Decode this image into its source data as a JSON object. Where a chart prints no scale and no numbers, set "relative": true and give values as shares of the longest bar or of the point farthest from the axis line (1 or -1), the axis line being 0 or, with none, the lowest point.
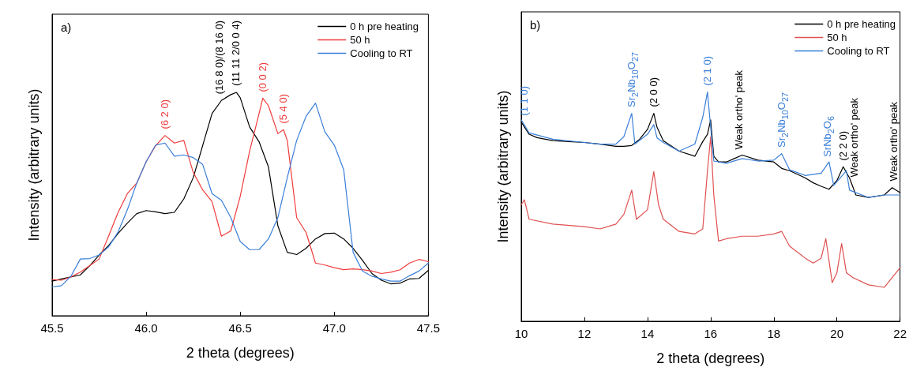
{
  "chart_data": [
    {
      "type": "line",
      "title": "a)",
      "xlabel": "2 theta (degrees)",
      "ylabel": "Intensity (arbitrary units)",
      "relative": true,
      "legend": "top right",
      "grid": false,
      "xlim": [
        45.5,
        47.5
      ],
      "xticks": [
        45.5,
        {
          "value": 46,
          "label": "46.0"
        },
        46.5,
        {
          "value": 47,
          "label": "47.0"
        },
        47.5
      ],
      "series": [
        {
          "name": "0 h pre heating",
          "color": "#000000",
          "x": [
            45.5,
            45.55,
            45.65,
            45.7,
            45.75,
            45.8,
            45.85,
            45.9,
            45.95,
            46.0,
            46.05,
            46.1,
            46.15,
            46.2,
            46.25,
            46.3,
            46.35,
            46.4,
            46.45,
            46.48,
            46.5,
            46.55,
            46.6,
            46.65,
            46.7,
            46.75,
            46.8,
            46.85,
            46.9,
            46.95,
            47.0,
            47.05,
            47.1,
            47.15,
            47.2,
            47.25,
            47.3,
            47.35,
            47.4,
            47.45,
            47.5
          ],
          "values": [
            0.155,
            0.165,
            0.183,
            0.224,
            0.272,
            0.314,
            0.368,
            0.415,
            0.457,
            0.471,
            0.465,
            0.457,
            0.463,
            0.523,
            0.618,
            0.761,
            0.905,
            0.964,
            0.99,
            1,
            0.976,
            0.845,
            0.779,
            0.666,
            0.403,
            0.284,
            0.274,
            0.302,
            0.344,
            0.368,
            0.37,
            0.344,
            0.302,
            0.248,
            0.189,
            0.159,
            0.143,
            0.146,
            0.165,
            0.167,
            0.203
          ]
        },
        {
          "name": "50 h",
          "color": "#f03c3c",
          "x": [
            45.5,
            45.55,
            45.6,
            45.65,
            45.7,
            45.75,
            45.8,
            45.85,
            45.9,
            45.95,
            46.0,
            46.05,
            46.1,
            46.15,
            46.2,
            46.25,
            46.3,
            46.35,
            46.4,
            46.45,
            46.5,
            46.55,
            46.6,
            46.62,
            46.65,
            46.7,
            46.73,
            46.75,
            46.8,
            46.85,
            46.9,
            46.95,
            47.0,
            47.05,
            47.1,
            47.15,
            47.2,
            47.25,
            47.3,
            47.35,
            47.4,
            47.45,
            47.5
          ],
          "values": [
            0.162,
            0.159,
            0.174,
            0.195,
            0.224,
            0.254,
            0.356,
            0.461,
            0.547,
            0.594,
            0.69,
            0.761,
            0.807,
            0.773,
            0.785,
            0.642,
            0.564,
            0.511,
            0.356,
            0.38,
            0.535,
            0.737,
            0.905,
            0.974,
            0.94,
            0.815,
            0.833,
            0.785,
            0.439,
            0.373,
            0.236,
            0.227,
            0.215,
            0.206,
            0.21,
            0.206,
            0.2,
            0.189,
            0.195,
            0.206,
            0.236,
            0.252,
            0.242
          ]
        },
        {
          "name": "Cooling to RT",
          "color": "#3a7fd9",
          "x": [
            45.5,
            45.55,
            45.6,
            45.65,
            45.7,
            45.75,
            45.8,
            45.85,
            45.9,
            45.95,
            46.0,
            46.05,
            46.1,
            46.15,
            46.2,
            46.25,
            46.3,
            46.35,
            46.4,
            46.45,
            46.5,
            46.55,
            46.6,
            46.65,
            46.7,
            46.75,
            46.8,
            46.85,
            46.9,
            46.95,
            47.0,
            47.05,
            47.1,
            47.15,
            47.2,
            47.25,
            47.3,
            47.35,
            47.4,
            47.45,
            47.5
          ],
          "values": [
            0.129,
            0.135,
            0.177,
            0.254,
            0.256,
            0.272,
            0.308,
            0.374,
            0.475,
            0.594,
            0.69,
            0.764,
            0.773,
            0.714,
            0.72,
            0.708,
            0.678,
            0.547,
            0.517,
            0.439,
            0.332,
            0.296,
            0.296,
            0.344,
            0.439,
            0.618,
            0.785,
            0.893,
            0.952,
            0.823,
            0.764,
            0.654,
            0.284,
            0.2,
            0.177,
            0.165,
            0.155,
            0.155,
            0.179,
            0.2,
            0.236
          ]
        }
      ],
      "annotations": [
        {
          "text": "(6 2 0)",
          "x": 46.1,
          "y": 0.807
        },
        {
          "text": "(16 8 0)/(8 16 0)",
          "x": 46.39,
          "y": 0.964
        },
        {
          "text": "(11 11 2/0 0 4)",
          "x": 46.48,
          "y": 1
        },
        {
          "text": "(0 0 2)",
          "x": 46.62,
          "y": 0.974
        },
        {
          "text": "(5 4 0)",
          "x": 46.73,
          "y": 0.833
        }
      ]
    },
    {
      "type": "line",
      "title": "b)",
      "xlabel": "2 theta (degrees)",
      "ylabel": "Intensity (arbitrary units)",
      "relative": true,
      "legend": "top right",
      "grid": false,
      "xlim": [
        10,
        22
      ],
      "xticks": [
        10,
        12,
        14,
        16,
        18,
        20,
        22
      ],
      "series": [
        {
          "name": "0 h pre heating",
          "color": "#000000",
          "x": [
            10,
            10.25,
            10.5,
            11,
            11.5,
            12,
            12.5,
            13,
            13.25,
            13.5,
            13.75,
            14,
            14.2,
            14.3,
            14.5,
            15,
            15.5,
            15.75,
            15.9,
            16.0,
            16.1,
            16.25,
            16.5,
            16.75,
            17,
            17.5,
            18,
            18.25,
            18.5,
            19,
            19.25,
            19.5,
            19.75,
            20,
            20.2,
            20.4,
            20.6,
            21,
            21.5,
            21.75,
            22
          ],
          "values": [
            0.869,
            0.816,
            0.801,
            0.788,
            0.784,
            0.78,
            0.773,
            0.763,
            0.763,
            0.767,
            0.794,
            0.837,
            0.907,
            0.847,
            0.788,
            0.742,
            0.72,
            0.784,
            0.816,
            0.879,
            0.72,
            0.695,
            0.695,
            0.71,
            0.725,
            0.703,
            0.695,
            0.667,
            0.657,
            0.625,
            0.604,
            0.589,
            0.576,
            0.614,
            0.674,
            0.625,
            0.551,
            0.54,
            0.551,
            0.583,
            0.561
          ]
        },
        {
          "name": "50 h",
          "color": "#e05050",
          "x": [
            10,
            10.1,
            10.25,
            11,
            12,
            12.5,
            13,
            13.25,
            13.5,
            13.65,
            14,
            14.2,
            14.35,
            14.5,
            15,
            15.5,
            15.75,
            15.9,
            16.0,
            16.1,
            16.25,
            16.5,
            17,
            17.5,
            18,
            18.25,
            18.5,
            19,
            19.25,
            19.5,
            19.65,
            19.85,
            20.0,
            20.15,
            20.3,
            20.5,
            21,
            21.5,
            21.75,
            22
          ],
          "values": [
            0.508,
            0.53,
            0.445,
            0.424,
            0.413,
            0.403,
            0.424,
            0.466,
            0.572,
            0.445,
            0.487,
            0.653,
            0.508,
            0.445,
            0.392,
            0.381,
            0.403,
            0.657,
            0.805,
            0.551,
            0.35,
            0.36,
            0.371,
            0.371,
            0.381,
            0.392,
            0.328,
            0.275,
            0.254,
            0.275,
            0.36,
            0.169,
            0.212,
            0.339,
            0.212,
            0.191,
            0.159,
            0.148,
            0.191,
            0.233
          ]
        },
        {
          "name": "Cooling to RT",
          "color": "#3a7fd9",
          "x": [
            10,
            10.25,
            11,
            12,
            12.5,
            13,
            13.25,
            13.5,
            13.6,
            14,
            14.2,
            14.3,
            14.5,
            15,
            15.5,
            15.75,
            15.9,
            16.0,
            16.1,
            16.5,
            17,
            17.5,
            18,
            18.25,
            18.5,
            19,
            19.5,
            19.75,
            19.9,
            20.1,
            20.3,
            20.4,
            21,
            21.5,
            22
          ],
          "values": [
            0.879,
            0.822,
            0.794,
            0.78,
            0.773,
            0.773,
            0.805,
            0.907,
            0.773,
            0.816,
            0.858,
            0.801,
            0.78,
            0.742,
            0.773,
            0.89,
            1,
            0.847,
            0.699,
            0.689,
            0.71,
            0.699,
            0.703,
            0.731,
            0.661,
            0.636,
            0.646,
            0.695,
            0.593,
            0.625,
            0.657,
            0.572,
            0.54,
            0.551,
            0.551
          ]
        }
      ],
      "annotations": [
        {
          "text": "(1 1 0)",
          "x": 10.1,
          "y": 0.87
        },
        {
          "text": "Sr$_{2}$Nb$_{10}$O$_{27}$",
          "x": 13.5,
          "y": 0.907
        },
        {
          "text": "(2 0 0)",
          "x": 14.2,
          "y": 0.907
        },
        {
          "text": "(2 1 0)",
          "x": 15.9,
          "y": 1
        },
        {
          "text": "Weak ortho' peak",
          "x": 16.9,
          "y": 0.72
        },
        {
          "text": "Sr$_{2}$Nb$_{10}$O$_{27}$",
          "x": 18.25,
          "y": 0.731
        },
        {
          "text": "SrNb$_{2}$O$_{6}$",
          "x": 19.7,
          "y": 0.69
        },
        {
          "text": "(2 2 0)",
          "x": 20.2,
          "y": 0.674
        },
        {
          "text": "Weak ortho' peak",
          "x": 20.55,
          "y": 0.6
        },
        {
          "text": "Weak ortho' peak",
          "x": 21.8,
          "y": 0.583
        }
      ]
    }
  ]
}
